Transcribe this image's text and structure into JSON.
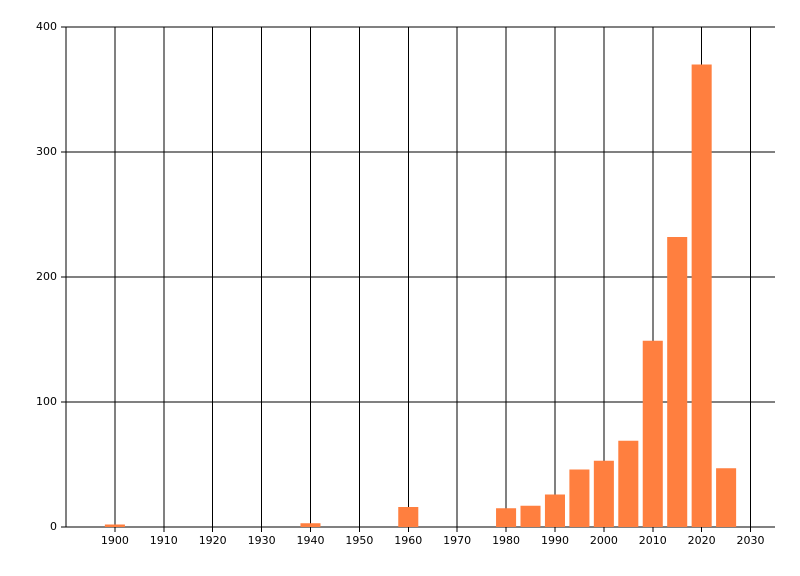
{
  "chart_data": {
    "type": "bar",
    "x": [
      1900,
      1940,
      1960,
      1980,
      1985,
      1990,
      1995,
      2000,
      2005,
      2010,
      2015,
      2020,
      2025
    ],
    "values": [
      2,
      3,
      16,
      15,
      17,
      26,
      46,
      53,
      69,
      149,
      232,
      370,
      47
    ],
    "color": "#ff7f3f",
    "xlim": [
      1890,
      2035
    ],
    "xticks": [
      1900,
      1910,
      1920,
      1930,
      1940,
      1950,
      1960,
      1970,
      1980,
      1990,
      2000,
      2010,
      2020,
      2030
    ],
    "ylim": [
      0,
      400
    ],
    "yticks": [
      0,
      100,
      200,
      300,
      400
    ],
    "grid": true
  }
}
